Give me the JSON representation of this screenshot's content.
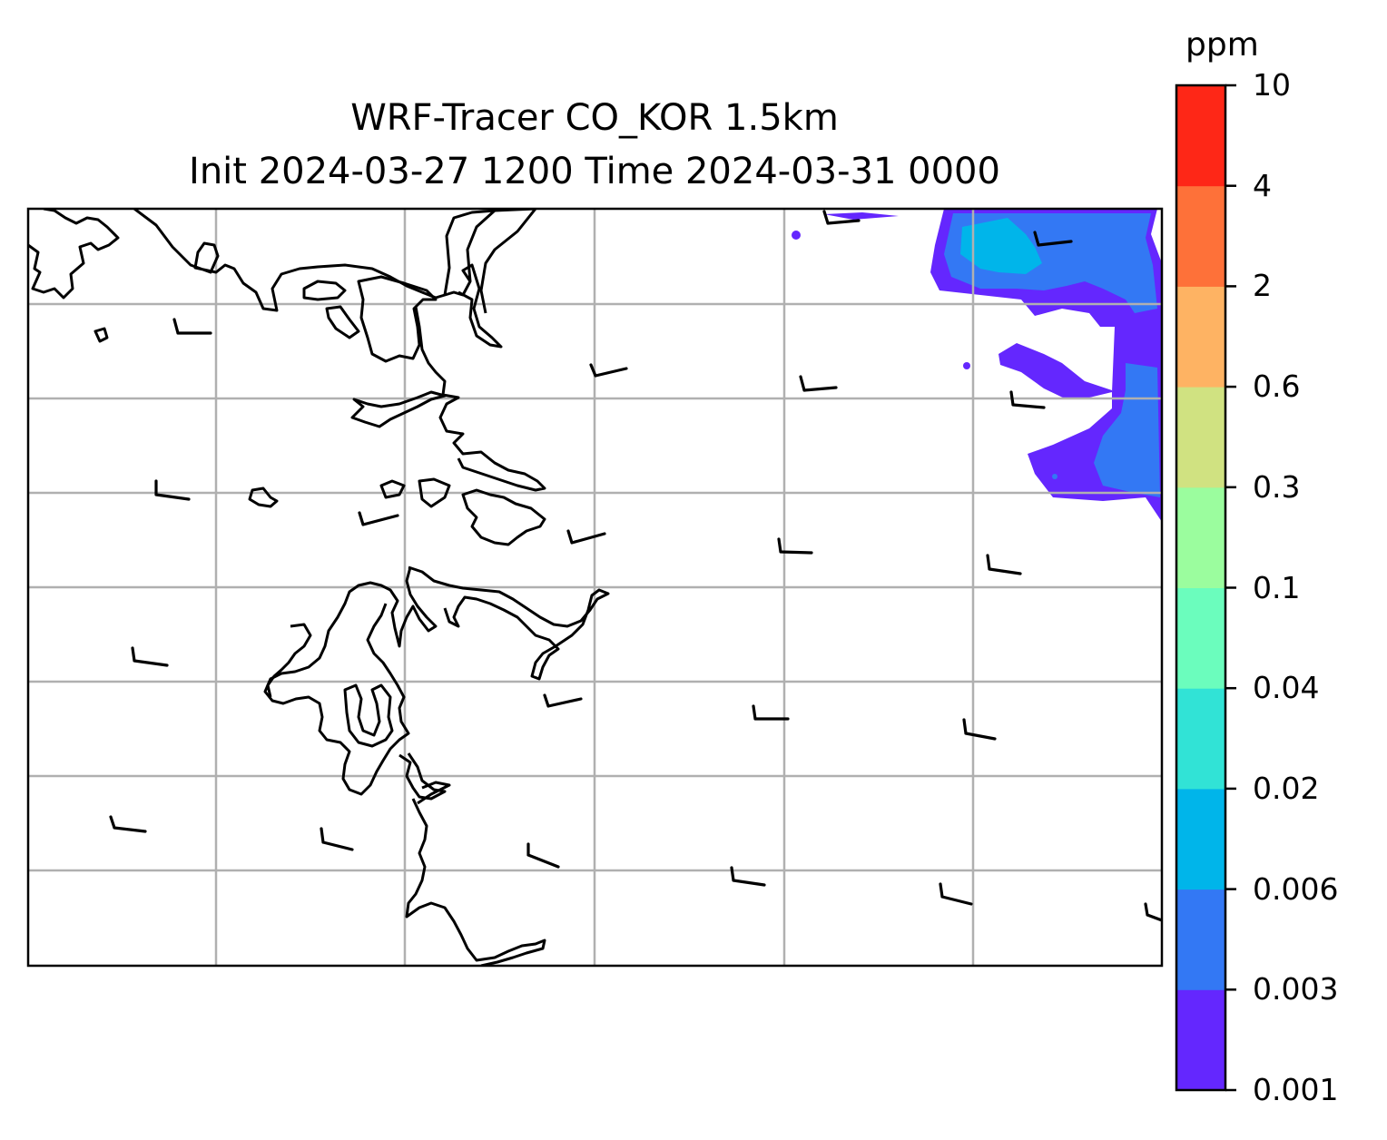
{
  "title": {
    "line1": "WRF-Tracer CO_KOR 1.5km",
    "line2": "Init 2024-03-27 1200 Time 2024-03-31 0000"
  },
  "colorbar": {
    "unit": "ppm",
    "levels": [
      "0.001",
      "0.003",
      "0.006",
      "0.02",
      "0.04",
      "0.1",
      "0.3",
      "0.6",
      "2",
      "4",
      "10"
    ],
    "colors": [
      "#6427fe",
      "#3378f4",
      "#00b5ea",
      "#31e3d6",
      "#6bfdbd",
      "#9bfd9e",
      "#d0e281",
      "#feb363",
      "#fe7139",
      "#fe2717"
    ]
  },
  "map": {
    "gridlines": true,
    "coastline_color": "#000000",
    "gridline_color": "#b0b0b0"
  }
}
